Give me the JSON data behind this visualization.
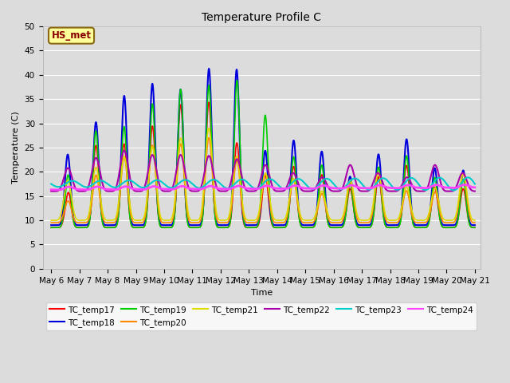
{
  "title": "Temperature Profile C",
  "xlabel": "Time",
  "ylabel": "Temperature (C)",
  "ylim": [
    0,
    50
  ],
  "background_color": "#dcdcdc",
  "annotation_text": "HS_met",
  "annotation_color": "#8b0000",
  "annotation_bg": "#ffff99",
  "annotation_edge": "#8b6914",
  "series": [
    {
      "name": "TC_temp17",
      "color": "#ff0000",
      "lw": 1.2
    },
    {
      "name": "TC_temp18",
      "color": "#0000dd",
      "lw": 1.5
    },
    {
      "name": "TC_temp19",
      "color": "#00cc00",
      "lw": 1.2
    },
    {
      "name": "TC_temp20",
      "color": "#ff8800",
      "lw": 1.2
    },
    {
      "name": "TC_temp21",
      "color": "#dddd00",
      "lw": 1.2
    },
    {
      "name": "TC_temp22",
      "color": "#aa00aa",
      "lw": 1.5
    },
    {
      "name": "TC_temp23",
      "color": "#00cccc",
      "lw": 1.5
    },
    {
      "name": "TC_temp24",
      "color": "#ff44ff",
      "lw": 2.0
    }
  ],
  "tick_labels": [
    "May 6",
    "May 7",
    "May 8",
    "May 9",
    "May 10",
    "May 11",
    "May 12",
    "May 13",
    "May 14",
    "May 15",
    "May 16",
    "May 17",
    "May 18",
    "May 19",
    "May 20",
    "May 21"
  ]
}
